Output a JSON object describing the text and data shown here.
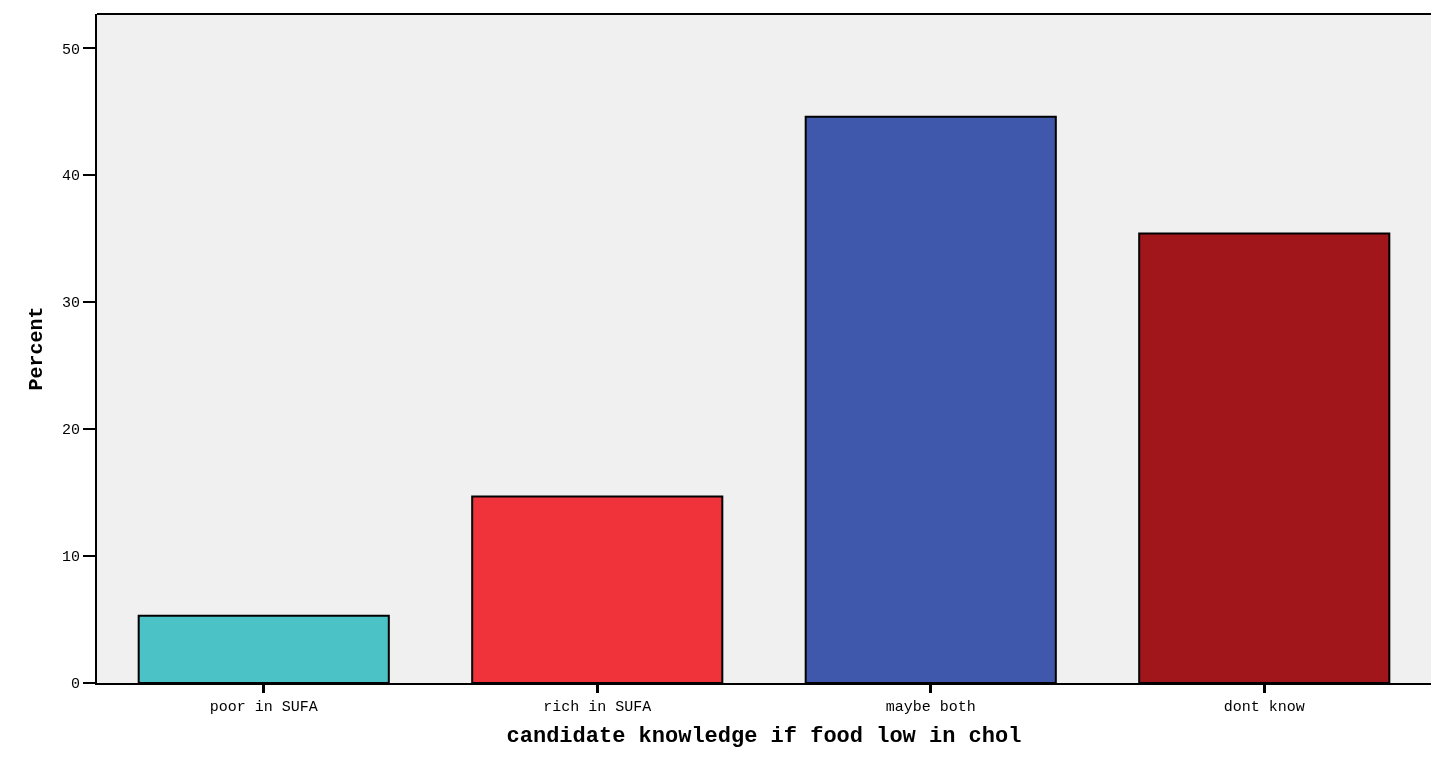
{
  "chart_data": {
    "type": "bar",
    "xlabel": "candidate knowledge if food low in chol",
    "ylabel": "Percent",
    "categories": [
      "poor in SUFA",
      "rich in SUFA",
      "maybe both",
      "dont know"
    ],
    "values": [
      5.3,
      14.7,
      44.6,
      35.4
    ],
    "colors": [
      "#4bc3c6",
      "#f0333a",
      "#3f58ab",
      "#a0161a"
    ],
    "ylim": [
      0,
      52.7
    ],
    "yticks": [
      0,
      10,
      20,
      30,
      40,
      50
    ],
    "grid": false
  }
}
